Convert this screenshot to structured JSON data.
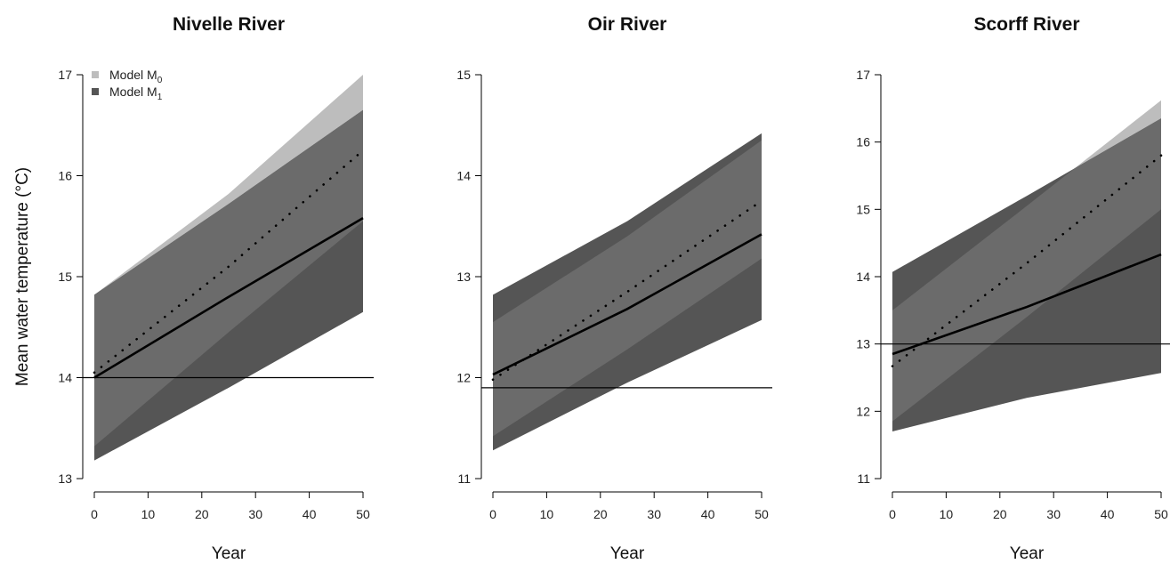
{
  "colors": {
    "m0_band": "#bdbdbd",
    "m1_band": "#555555",
    "overlap": "#6b6b6b",
    "axis": "#000000"
  },
  "chart_data": [
    {
      "type": "area",
      "title": "Nivelle River",
      "xlabel": "Year",
      "ylabel": "Mean water temperature (°C)",
      "xlim": [
        0,
        50
      ],
      "ylim": [
        13,
        17
      ],
      "xticks": [
        "0",
        "10",
        "20",
        "30",
        "40",
        "50"
      ],
      "yticks": [
        "13",
        "14",
        "15",
        "16",
        "17"
      ],
      "reference_line": 14.0,
      "legend": {
        "placement": "top-left",
        "entries": [
          {
            "label": "Model M",
            "sub": "0",
            "series": "m0"
          },
          {
            "label": "Model M",
            "sub": "1",
            "series": "m1"
          }
        ]
      },
      "series": [
        {
          "name": "Model M0",
          "x": [
            0,
            25,
            50
          ],
          "lower": [
            13.32,
            14.45,
            15.55
          ],
          "upper": [
            14.82,
            15.82,
            17.0
          ],
          "mean": [
            14.05,
            15.1,
            16.25
          ],
          "mean_style": "dotted"
        },
        {
          "name": "Model M1",
          "x": [
            0,
            25,
            50
          ],
          "lower": [
            13.18,
            13.9,
            14.65
          ],
          "upper": [
            14.82,
            15.72,
            16.65
          ],
          "mean": [
            14.0,
            14.8,
            15.58
          ],
          "mean_style": "solid"
        }
      ]
    },
    {
      "type": "area",
      "title": "Oir River",
      "xlabel": "Year",
      "xlim": [
        0,
        50
      ],
      "ylim": [
        11,
        15
      ],
      "xticks": [
        "0",
        "10",
        "20",
        "30",
        "40",
        "50"
      ],
      "yticks": [
        "11",
        "12",
        "13",
        "14",
        "15"
      ],
      "reference_line": 11.9,
      "series": [
        {
          "name": "Model M0",
          "x": [
            0,
            25,
            50
          ],
          "lower": [
            11.42,
            12.28,
            13.18
          ],
          "upper": [
            12.55,
            13.4,
            14.35
          ],
          "mean": [
            11.98,
            12.85,
            13.75
          ],
          "mean_style": "dotted"
        },
        {
          "name": "Model M1",
          "x": [
            0,
            25,
            50
          ],
          "lower": [
            11.28,
            11.95,
            12.57
          ],
          "upper": [
            12.82,
            13.55,
            14.42
          ],
          "mean": [
            12.03,
            12.68,
            13.42
          ],
          "mean_style": "solid"
        }
      ]
    },
    {
      "type": "area",
      "title": "Scorff River",
      "xlabel": "Year",
      "xlim": [
        0,
        50
      ],
      "ylim": [
        11,
        17
      ],
      "xticks": [
        "0",
        "10",
        "20",
        "30",
        "40",
        "50"
      ],
      "yticks": [
        "11",
        "12",
        "13",
        "14",
        "15",
        "16",
        "17"
      ],
      "reference_line": 13.0,
      "series": [
        {
          "name": "Model M0",
          "x": [
            0,
            25,
            50
          ],
          "lower": [
            11.85,
            13.4,
            15.0
          ],
          "upper": [
            13.5,
            15.05,
            16.62
          ],
          "mean": [
            12.67,
            14.2,
            15.8
          ],
          "mean_style": "dotted"
        },
        {
          "name": "Model M1",
          "x": [
            0,
            25,
            50
          ],
          "lower": [
            11.7,
            12.2,
            12.57
          ],
          "upper": [
            14.07,
            15.2,
            16.35
          ],
          "mean": [
            12.85,
            13.55,
            14.33
          ],
          "mean_style": "solid"
        }
      ]
    }
  ]
}
